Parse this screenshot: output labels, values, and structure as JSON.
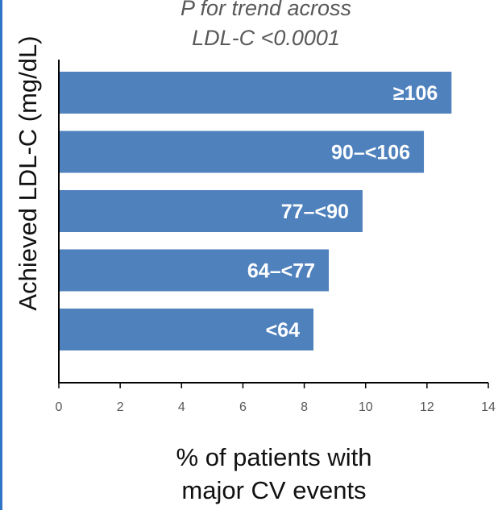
{
  "chart_data": {
    "type": "bar",
    "orientation": "horizontal",
    "annotation": [
      "P for trend across",
      "LDL-C <0.0001"
    ],
    "xlabel": [
      "% of patients with",
      "major CV events"
    ],
    "ylabel": "Achieved LDL-C (mg/dL)",
    "xlim": [
      0,
      14
    ],
    "xticks": [
      0,
      2,
      4,
      6,
      8,
      10,
      12,
      14
    ],
    "categories": [
      "≥106",
      "90–<106",
      "77–<90",
      "64–<77",
      "<64"
    ],
    "values": [
      12.8,
      11.9,
      9.9,
      8.8,
      8.3
    ],
    "bar_color": "#4f81bd",
    "grid": false,
    "legend": "none"
  }
}
